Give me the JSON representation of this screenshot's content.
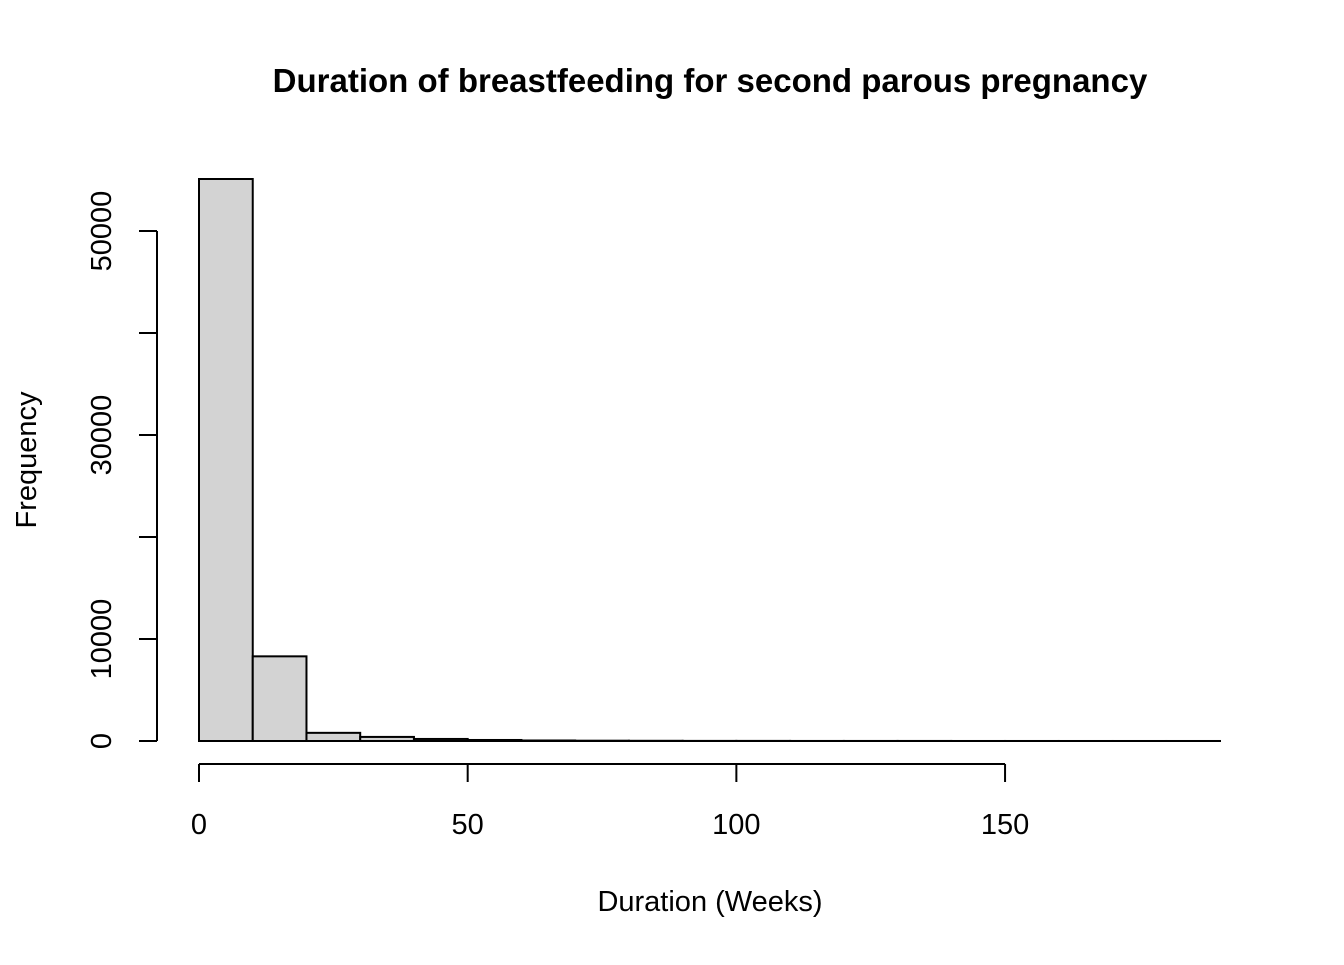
{
  "chart_data": {
    "type": "histogram",
    "title": "Duration of breastfeeding for second parous pregnancy",
    "x_label": "Duration (Weeks)",
    "y_label": "Frequency",
    "bins": [
      0,
      10,
      20,
      30,
      40,
      50,
      60,
      70,
      80,
      90,
      100,
      110,
      120,
      130,
      140,
      150,
      160,
      170,
      180,
      190
    ],
    "values": [
      55100,
      8300,
      800,
      400,
      200,
      100,
      50,
      30,
      20,
      10,
      10,
      5,
      5,
      5,
      2,
      2,
      1,
      1,
      1
    ],
    "color": "#d3d3d3",
    "xlim": [
      0,
      190
    ],
    "xticks": [
      0,
      50,
      100,
      150
    ],
    "ylim": [
      0,
      55100
    ],
    "yticks": [
      0,
      10000,
      {
        "value": 20000,
        "label": null
      },
      30000,
      {
        "value": 40000,
        "label": null
      },
      50000
    ]
  }
}
